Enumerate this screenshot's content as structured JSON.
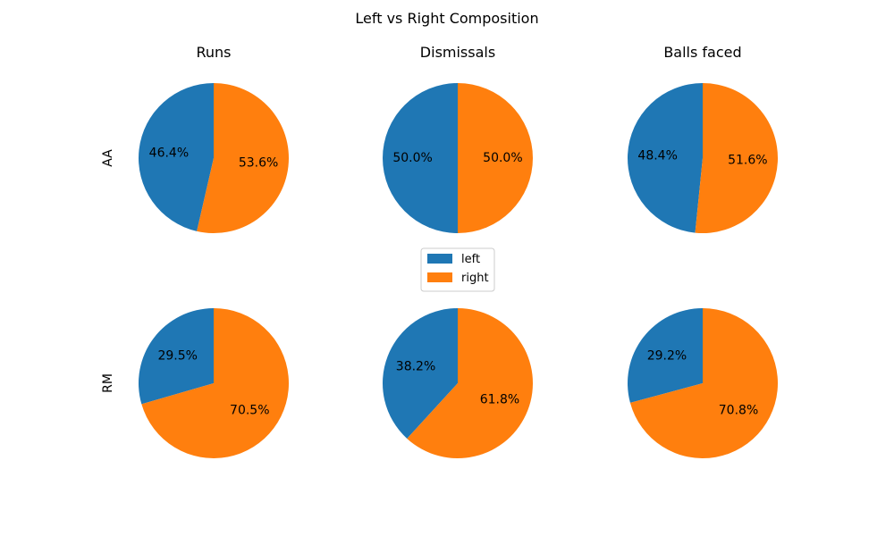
{
  "chart_data": {
    "type": "pie",
    "title": "Left vs Right Composition",
    "columns": [
      "Runs",
      "Dismissals",
      "Balls faced"
    ],
    "rows": [
      "AA",
      "RM"
    ],
    "categories": [
      "left",
      "right"
    ],
    "colors": {
      "left": "#1f77b4",
      "right": "#ff7f0e"
    },
    "legend": {
      "entries": [
        "left",
        "right"
      ],
      "placement": "center"
    },
    "pies": [
      {
        "row": "AA",
        "column": "Runs",
        "values": [
          46.4,
          53.6
        ],
        "labels": [
          "46.4%",
          "53.6%"
        ]
      },
      {
        "row": "AA",
        "column": "Dismissals",
        "values": [
          50.0,
          50.0
        ],
        "labels": [
          "50.0%",
          "50.0%"
        ]
      },
      {
        "row": "AA",
        "column": "Balls faced",
        "values": [
          48.4,
          51.6
        ],
        "labels": [
          "48.4%",
          "51.6%"
        ]
      },
      {
        "row": "RM",
        "column": "Runs",
        "values": [
          29.5,
          70.5
        ],
        "labels": [
          "29.5%",
          "70.5%"
        ]
      },
      {
        "row": "RM",
        "column": "Dismissals",
        "values": [
          38.2,
          61.8
        ],
        "labels": [
          "38.2%",
          "61.8%"
        ]
      },
      {
        "row": "RM",
        "column": "Balls faced",
        "values": [
          29.2,
          70.8
        ],
        "labels": [
          "29.2%",
          "70.8%"
        ]
      }
    ]
  }
}
